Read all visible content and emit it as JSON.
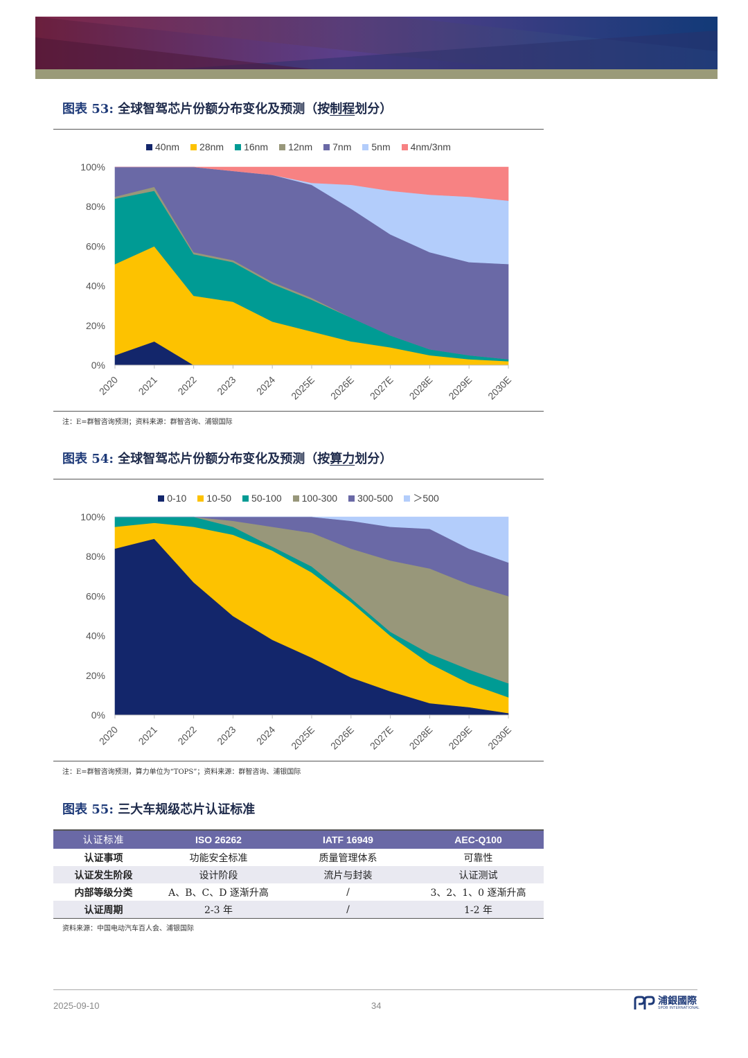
{
  "banner": {
    "colors": [
      "#6b1f3d",
      "#5a3f8a",
      "#123a78",
      "#9a9a78"
    ]
  },
  "fig53": {
    "label": "图表 53:",
    "title_pre": "全球智驾芯片份额分布变化及预测（按",
    "title_u": "制程",
    "title_post": "划分）",
    "note": "注：E=群智咨询预测；资料来源：群智咨询、浦银国际"
  },
  "fig54": {
    "label": "图表 54:",
    "title_pre": "全球智驾芯片份额分布变化及预测（按",
    "title_u": "算力",
    "title_post": "划分）",
    "note": "注：E=群智咨询预测，算力单位为“TOPS”；资料来源：群智咨询、浦银国际"
  },
  "fig55": {
    "label": "图表 55:",
    "title": "三大车规级芯片认证标准",
    "note": "资料来源：中国电动汽车百人会、浦银国际",
    "headers": [
      "认证标准",
      "ISO 26262",
      "IATF 16949",
      "AEC-Q100"
    ],
    "rows": [
      [
        "认证事项",
        "功能安全标准",
        "质量管理体系",
        "可靠性"
      ],
      [
        "认证发生阶段",
        "设计阶段",
        "流片与封装",
        "认证测试"
      ],
      [
        "内部等级分类",
        "A、B、C、D 逐渐升高",
        "/",
        "3、2、1、0 逐渐升高"
      ],
      [
        "认证周期",
        "2-3 年",
        "/",
        "1-2 年"
      ]
    ]
  },
  "footer": {
    "date": "2025-09-10",
    "page": "34",
    "logo_cn": "浦銀國際",
    "logo_en": "SPDB INTERNATIONAL"
  },
  "chart_data": [
    {
      "type": "area",
      "stacked": true,
      "title": "",
      "categories": [
        "2020",
        "2021",
        "2022",
        "2023",
        "2024",
        "2025E",
        "2026E",
        "2027E",
        "2028E",
        "2029E",
        "2030E"
      ],
      "yticks": [
        "0%",
        "20%",
        "40%",
        "60%",
        "80%",
        "100%"
      ],
      "ylim": [
        0,
        100
      ],
      "legend_position": "top",
      "series": [
        {
          "name": "40nm",
          "color": "#13266b",
          "values": [
            5,
            12,
            0,
            0,
            0,
            0,
            0,
            0,
            0,
            0,
            0
          ]
        },
        {
          "name": "28nm",
          "color": "#fdc200",
          "values": [
            46,
            48,
            35,
            32,
            22,
            17,
            12,
            9,
            5,
            3,
            2
          ]
        },
        {
          "name": "16nm",
          "color": "#009b94",
          "values": [
            33,
            28,
            21,
            20,
            19,
            16,
            12,
            6,
            3,
            2,
            1
          ]
        },
        {
          "name": "12nm",
          "color": "#98977a",
          "values": [
            1,
            2,
            1,
            1,
            1,
            1,
            0,
            0,
            0,
            0,
            0
          ]
        },
        {
          "name": "7nm",
          "color": "#6a69a6",
          "values": [
            15,
            10,
            43,
            45,
            54,
            57,
            55,
            51,
            49,
            47,
            48
          ]
        },
        {
          "name": "5nm",
          "color": "#b3cdfb",
          "values": [
            0,
            0,
            0,
            0,
            0,
            1,
            12,
            22,
            29,
            33,
            32
          ]
        },
        {
          "name": "4nm/3nm",
          "color": "#f78283",
          "values": [
            0,
            0,
            0,
            2,
            4,
            8,
            9,
            12,
            14,
            15,
            17
          ]
        }
      ]
    },
    {
      "type": "area",
      "stacked": true,
      "title": "",
      "categories": [
        "2020",
        "2021",
        "2022",
        "2023",
        "2024",
        "2025E",
        "2026E",
        "2027E",
        "2028E",
        "2029E",
        "2030E"
      ],
      "yticks": [
        "0%",
        "20%",
        "40%",
        "60%",
        "80%",
        "100%"
      ],
      "ylim": [
        0,
        100
      ],
      "legend_position": "top",
      "series": [
        {
          "name": "0-10",
          "color": "#13266b",
          "values": [
            84,
            89,
            67,
            50,
            38,
            29,
            19,
            12,
            6,
            4,
            1
          ]
        },
        {
          "name": "10-50",
          "color": "#fdc200",
          "values": [
            11,
            8,
            28,
            41,
            45,
            43,
            38,
            28,
            20,
            12,
            8
          ]
        },
        {
          "name": "50-100",
          "color": "#009b94",
          "values": [
            5,
            3,
            5,
            4,
            2,
            3,
            2,
            2,
            5,
            7,
            7
          ]
        },
        {
          "name": "100-300",
          "color": "#98977a",
          "values": [
            0,
            0,
            0,
            3,
            10,
            17,
            25,
            36,
            43,
            43,
            44
          ]
        },
        {
          "name": "300-500",
          "color": "#6a69a6",
          "values": [
            0,
            0,
            0,
            2,
            5,
            8,
            14,
            17,
            20,
            18,
            17
          ]
        },
        {
          "name": "＞500",
          "color": "#b3cdfb",
          "values": [
            0,
            0,
            0,
            0,
            0,
            0,
            2,
            5,
            6,
            16,
            23
          ]
        }
      ]
    }
  ]
}
